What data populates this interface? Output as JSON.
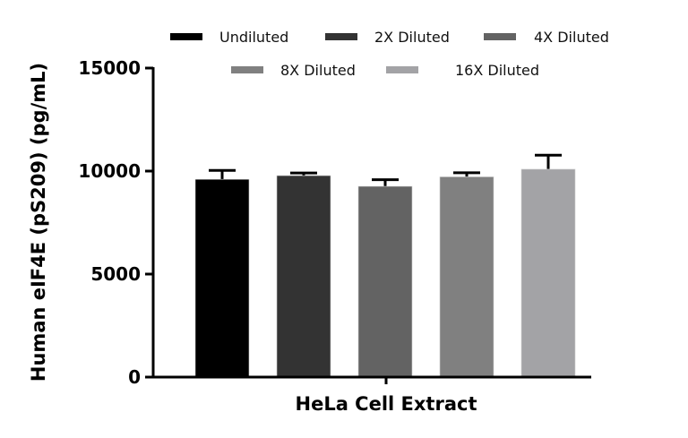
{
  "chart_data": {
    "type": "bar",
    "title": "",
    "xlabel": "HeLa Cell Extract",
    "ylabel": "Human  eIF4E (pS209) (pg/mL)",
    "ylim": [
      0,
      15000
    ],
    "yticks": [
      0,
      5000,
      10000,
      15000
    ],
    "grid": false,
    "legend_placement": "top",
    "categories": [
      "HeLa Cell Extract"
    ],
    "series": [
      {
        "name": "Undiluted",
        "values": [
          9600
        ],
        "error": [
          430
        ],
        "color": "#000000"
      },
      {
        "name": "2X Diluted",
        "values": [
          9780
        ],
        "error": [
          130
        ],
        "color": "#333333"
      },
      {
        "name": "4X Diluted",
        "values": [
          9260
        ],
        "error": [
          320
        ],
        "color": "#636363"
      },
      {
        "name": "8X Diluted",
        "values": [
          9720
        ],
        "error": [
          200
        ],
        "color": "#808080"
      },
      {
        "name": "16X Diluted",
        "values": [
          10090
        ],
        "error": [
          680
        ],
        "color": "#a3a3a6"
      }
    ]
  }
}
